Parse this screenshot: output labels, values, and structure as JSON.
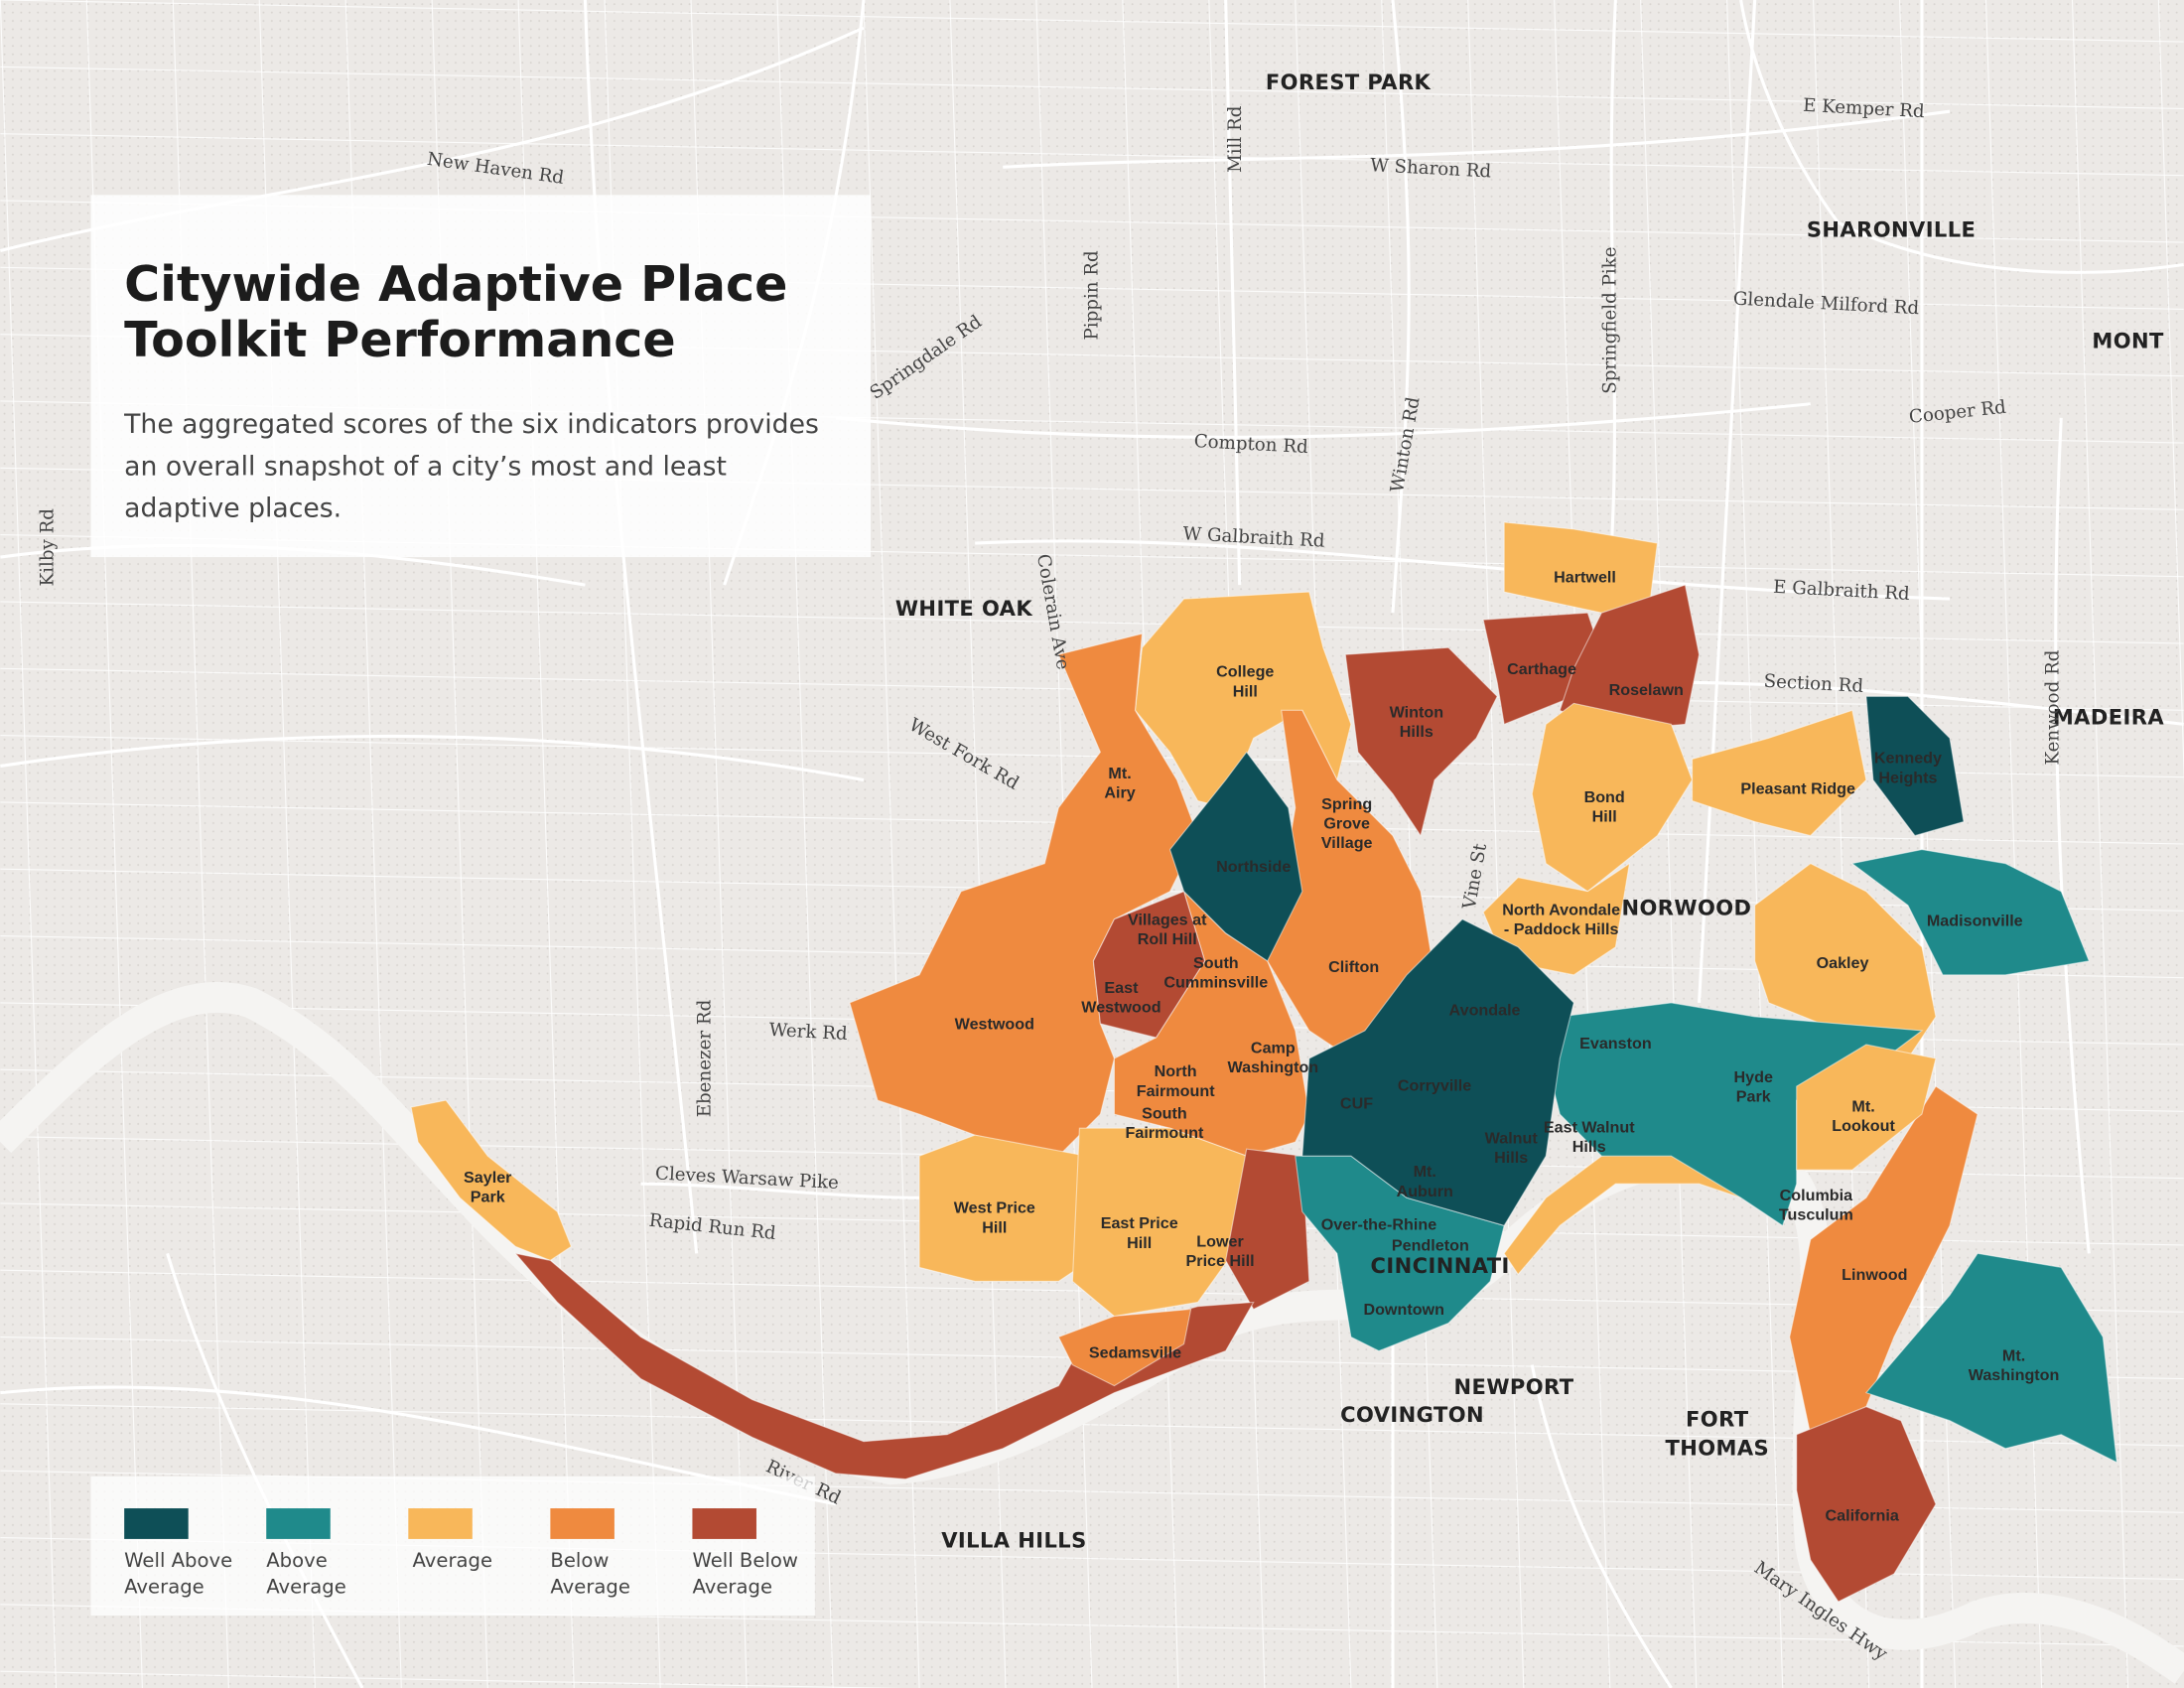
{
  "header": {
    "title": [
      "Citywide Adaptive Place",
      "Toolkit Performance"
    ],
    "subtitle": [
      "The aggregated scores of the six indicators provides",
      "an overall snapshot of a city’s most and least",
      "adaptive places."
    ]
  },
  "legend": [
    {
      "label": [
        "Well Above",
        "Average"
      ],
      "color": "#0e4f57"
    },
    {
      "label": [
        "Above",
        "Average"
      ],
      "color": "#1f8a8b"
    },
    {
      "label": [
        "Average"
      ],
      "color": "#f8b75a"
    },
    {
      "label": [
        "Below",
        "Average"
      ],
      "color": "#ef8a3f"
    },
    {
      "label": [
        "Well Below",
        "Average"
      ],
      "color": "#b34a33"
    }
  ],
  "neighborhoods": [
    [
      "Hartwell"
    ],
    [
      "Carthage"
    ],
    [
      "Roselawn"
    ],
    [
      "College",
      "Hill"
    ],
    [
      "Winton",
      "Hills"
    ],
    [
      "Mt.",
      "Airy"
    ],
    [
      "Spring",
      "Grove",
      "Village"
    ],
    [
      "Northside"
    ],
    [
      "Bond",
      "Hill"
    ],
    [
      "Pleasant Ridge"
    ],
    [
      "Kennedy",
      "Heights"
    ],
    [
      "North Avondale",
      "- Paddock Hills"
    ],
    [
      "Madisonville"
    ],
    [
      "Oakley"
    ],
    [
      "Villages at",
      "Roll Hill"
    ],
    [
      "South",
      "Cumminsville"
    ],
    [
      "Clifton"
    ],
    [
      "East",
      "Westwood"
    ],
    [
      "Westwood"
    ],
    [
      "Avondale"
    ],
    [
      "Evanston"
    ],
    [
      "Hyde",
      "Park"
    ],
    [
      "Camp",
      "Washington"
    ],
    [
      "North",
      "Fairmount"
    ],
    [
      "South",
      "Fairmount"
    ],
    [
      "Corryville"
    ],
    [
      "CUF"
    ],
    [
      "Mt.",
      "Lookout"
    ],
    [
      "Walnut",
      "Hills"
    ],
    [
      "East Walnut",
      "Hills"
    ],
    [
      "Mt.",
      "Auburn"
    ],
    [
      "Sayler",
      "Park"
    ],
    [
      "West Price",
      "Hill"
    ],
    [
      "East Price",
      "Hill"
    ],
    [
      "Lower",
      "Price Hill"
    ],
    [
      "Over-the-Rhine"
    ],
    [
      "Pendleton"
    ],
    [
      "Columbia",
      "Tusculum"
    ],
    [
      "Linwood"
    ],
    [
      "Downtown"
    ],
    [
      "Sedamsville"
    ],
    [
      "Mt.",
      "Washington"
    ],
    [
      "California"
    ]
  ],
  "places": [
    [
      "FOREST PARK"
    ],
    [
      "SHARONVILLE"
    ],
    [
      "WHITE OAK"
    ],
    [
      "NORWOOD"
    ],
    [
      "CINCINNATI"
    ],
    [
      "NEWPORT"
    ],
    [
      "COVINGTON"
    ],
    [
      "FORT",
      "THOMAS"
    ],
    [
      "VILLA HILLS"
    ],
    [
      "MONT"
    ],
    [
      "MADEIRA"
    ]
  ],
  "roads": [
    "New Haven Rd",
    "W Sharon Rd",
    "E Kemper Rd",
    "Glendale Milford Rd",
    "Cooper Rd",
    "Compton Rd",
    "W Galbraith Rd",
    "E Galbraith Rd",
    "Section Rd",
    "West Fork Rd",
    "Werk Rd",
    "Cleves Warsaw Pike",
    "Rapid Run Rd",
    "River Rd",
    "Kilby Rd",
    "Springdale Rd",
    "Pippin Rd",
    "Mill Rd",
    "Winton Rd",
    "Springfield Pike",
    "Colerain Ave",
    "Ebenezer Rd",
    "Kenwood Rd",
    "Mary Ingles Hwy",
    "Vine St"
  ]
}
